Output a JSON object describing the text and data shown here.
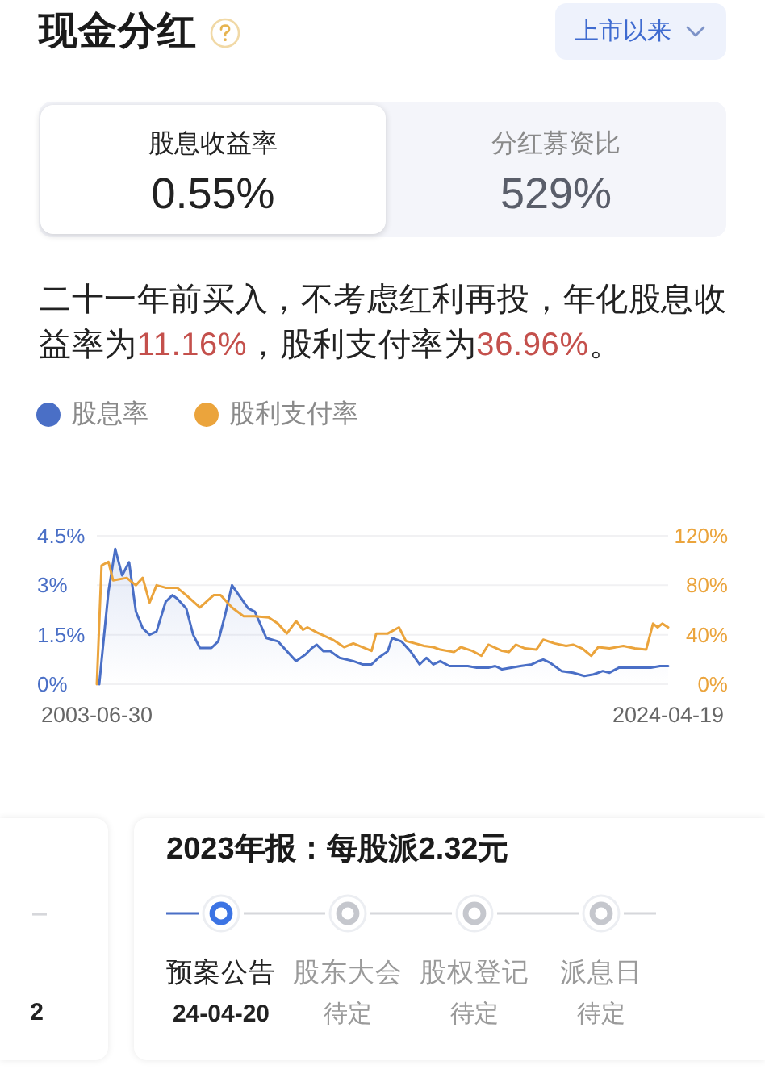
{
  "chart_data": [
    {
      "type": "other",
      "title": "现金分红",
      "annotations": [
        "上市以来",
        "股息收益率",
        "0.55%",
        "分红募资比",
        "529%",
        "二十一年前买入，不考虑红利再投，年化股息收",
        "益率为",
        "11.16%",
        "，股利支付率为",
        "36.96%",
        "。"
      ]
    },
    {
      "type": "line",
      "legend": "top left",
      "grid": "y",
      "xlim": [
        "2003-06-30",
        "2024-04-19"
      ],
      "xticks": [
        "2003-06-30",
        "2024-04-19"
      ],
      "ylim": [
        0,
        4.5
      ],
      "yticks": [
        {
          "value": 0,
          "label": "0%"
        },
        {
          "value": 1.5,
          "label": "1.5%"
        },
        {
          "value": 3,
          "label": "3%"
        },
        {
          "value": 4.5,
          "label": "4.5%"
        }
      ],
      "y2lim": [
        0,
        120
      ],
      "y2ticks": [
        {
          "value": 0,
          "label": "0%"
        },
        {
          "value": 40,
          "label": "40%"
        },
        {
          "value": 80,
          "label": "80%"
        },
        {
          "value": 120,
          "label": "120%"
        }
      ],
      "series": [
        {
          "name": "股息率",
          "type": "area",
          "color": "#4a6fc6",
          "x": [
            "2003-08",
            "2003-12",
            "2004-03",
            "2004-06",
            "2004-09",
            "2004-12",
            "2005-03",
            "2005-06",
            "2005-09",
            "2006-01",
            "2006-04",
            "2006-06",
            "2006-10",
            "2007-01",
            "2007-04",
            "2007-09",
            "2007-12",
            "2008-03",
            "2008-06",
            "2008-10",
            "2009-01",
            "2009-04",
            "2009-09",
            "2010-02",
            "2010-06",
            "2010-10",
            "2011-02",
            "2011-05",
            "2011-07",
            "2011-10",
            "2012-01",
            "2012-05",
            "2012-11",
            "2013-03",
            "2013-07",
            "2013-10",
            "2014-02",
            "2014-04",
            "2014-08",
            "2014-12",
            "2015-04",
            "2015-07",
            "2015-10",
            "2016-01",
            "2016-05",
            "2016-10",
            "2017-01",
            "2017-05",
            "2017-10",
            "2018-01",
            "2018-04",
            "2018-08",
            "2018-12",
            "2019-05",
            "2019-08",
            "2019-10",
            "2020-01",
            "2020-06",
            "2020-11",
            "2021-04",
            "2021-08",
            "2021-12",
            "2022-03",
            "2022-07",
            "2023-01",
            "2023-05",
            "2023-09",
            "2024-01",
            "2024-04-19"
          ],
          "values": [
            0,
            2.8,
            4.1,
            3.3,
            3.7,
            2.2,
            1.7,
            1.5,
            1.6,
            2.5,
            2.7,
            2.6,
            2.3,
            1.5,
            1.1,
            1.1,
            1.3,
            2.1,
            3.0,
            2.6,
            2.3,
            2.2,
            1.4,
            1.3,
            1.0,
            0.7,
            0.9,
            1.1,
            1.2,
            1.0,
            1.0,
            0.8,
            0.7,
            0.6,
            0.6,
            0.8,
            1.0,
            1.4,
            1.3,
            1.0,
            0.6,
            0.8,
            0.6,
            0.7,
            0.55,
            0.55,
            0.55,
            0.5,
            0.5,
            0.55,
            0.45,
            0.5,
            0.55,
            0.6,
            0.7,
            0.75,
            0.65,
            0.4,
            0.35,
            0.25,
            0.3,
            0.4,
            0.35,
            0.5,
            0.5,
            0.5,
            0.5,
            0.55,
            0.55
          ]
        },
        {
          "name": "股利支付率",
          "color": "#eba43c",
          "axis": "y2",
          "x": [
            "2003-06-30",
            "2003-09",
            "2003-12",
            "2004-02",
            "2004-08",
            "2004-12",
            "2005-03",
            "2005-06",
            "2005-09",
            "2006-01",
            "2006-06",
            "2006-10",
            "2007-04",
            "2007-10",
            "2008-01",
            "2008-06",
            "2008-11",
            "2009-04",
            "2009-10",
            "2010-02",
            "2010-06",
            "2010-10",
            "2011-01",
            "2011-03",
            "2011-07",
            "2012-02",
            "2012-07",
            "2012-11",
            "2013-07",
            "2013-09",
            "2014-02",
            "2014-04",
            "2014-07",
            "2014-10",
            "2015-02",
            "2015-06",
            "2015-10",
            "2016-01",
            "2016-07",
            "2016-10",
            "2017-03",
            "2017-07",
            "2017-10",
            "2018-04",
            "2018-07",
            "2018-10",
            "2019-02",
            "2019-07",
            "2019-10",
            "2020-03",
            "2020-08",
            "2020-11",
            "2021-03",
            "2021-07",
            "2021-10",
            "2022-03",
            "2022-09",
            "2023-02",
            "2023-07",
            "2023-10",
            "2023-12",
            "2024-02",
            "2024-04-19"
          ],
          "values": [
            0,
            96,
            99,
            84,
            86,
            80,
            86,
            66,
            80,
            78,
            78,
            72,
            62,
            72,
            72,
            62,
            55,
            55,
            54,
            49,
            41,
            51,
            44,
            46,
            42,
            36,
            30,
            33,
            27,
            41,
            41,
            43,
            46,
            35,
            33,
            31,
            30,
            28,
            26,
            30,
            27,
            23,
            32,
            27,
            26,
            32,
            29,
            28,
            36,
            33,
            31,
            32,
            29,
            23,
            30,
            29,
            31,
            29,
            28,
            49,
            46,
            49,
            46
          ]
        }
      ]
    },
    {
      "type": "other",
      "annotations": [
        "2"
      ]
    },
    {
      "type": "other",
      "title": "2023年报：每股派2.32元",
      "annotations": [
        "预案公告",
        "24-04-20",
        "股东大会",
        "待定",
        "股权登记",
        "待定",
        "派息日",
        "待定"
      ]
    }
  ]
}
